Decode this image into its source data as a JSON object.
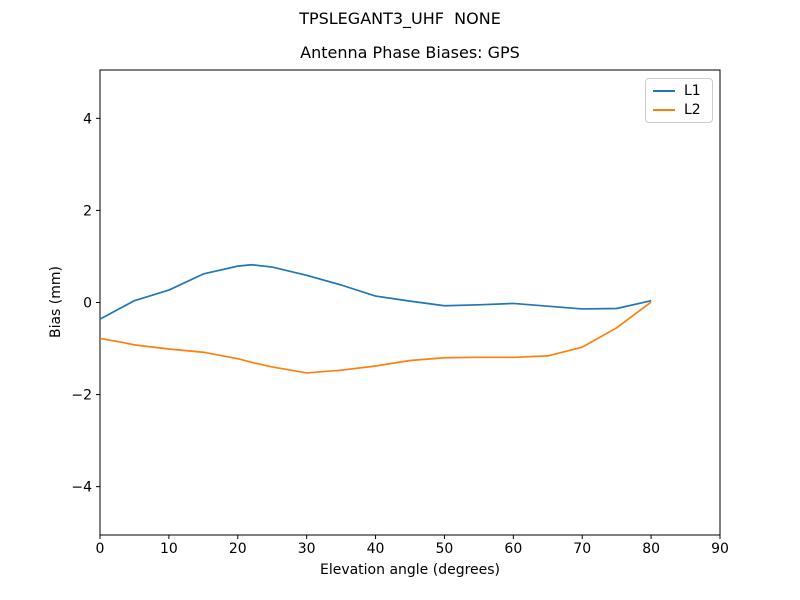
{
  "accent_colors": {
    "l1_blue": "#1f77b4",
    "l2_orange": "#ff7f0e",
    "legend_border": "#cccccc",
    "axes_color": "#000000"
  },
  "chart_data": {
    "type": "line",
    "suptitle": "TPSLEGANT3_UHF  NONE",
    "title": "Antenna Phase Biases: GPS",
    "xlabel": "Elevation angle (degrees)",
    "ylabel": "Bias (mm)",
    "xlim": [
      0,
      90
    ],
    "ylim": [
      -5.05,
      5.05
    ],
    "grid": false,
    "legend_position": "upper right",
    "xticks": {
      "values": [
        0,
        10,
        20,
        30,
        40,
        50,
        60,
        70,
        80,
        90
      ],
      "labels": [
        "0",
        "10",
        "20",
        "30",
        "40",
        "50",
        "60",
        "70",
        "80",
        "90"
      ]
    },
    "yticks": {
      "values": [
        -4,
        -2,
        0,
        2,
        4
      ],
      "labels": [
        "−4",
        "−2",
        "0",
        "2",
        "4"
      ]
    },
    "x": [
      0,
      3,
      5,
      10,
      15,
      20,
      22,
      25,
      30,
      35,
      40,
      45,
      50,
      55,
      60,
      65,
      70,
      75,
      80
    ],
    "series": [
      {
        "name": "L1",
        "color": "#1f77b4",
        "values": [
          -0.36,
          -0.12,
          0.04,
          0.27,
          0.62,
          0.79,
          0.82,
          0.77,
          0.59,
          0.38,
          0.14,
          0.03,
          -0.07,
          -0.05,
          -0.02,
          -0.08,
          -0.14,
          -0.13,
          0.04
        ]
      },
      {
        "name": "L2",
        "color": "#ff7f0e",
        "values": [
          -0.78,
          -0.86,
          -0.92,
          -1.01,
          -1.08,
          -1.22,
          -1.3,
          -1.4,
          -1.53,
          -1.47,
          -1.38,
          -1.26,
          -1.2,
          -1.19,
          -1.19,
          -1.16,
          -0.97,
          -0.55,
          0.01
        ]
      }
    ]
  }
}
